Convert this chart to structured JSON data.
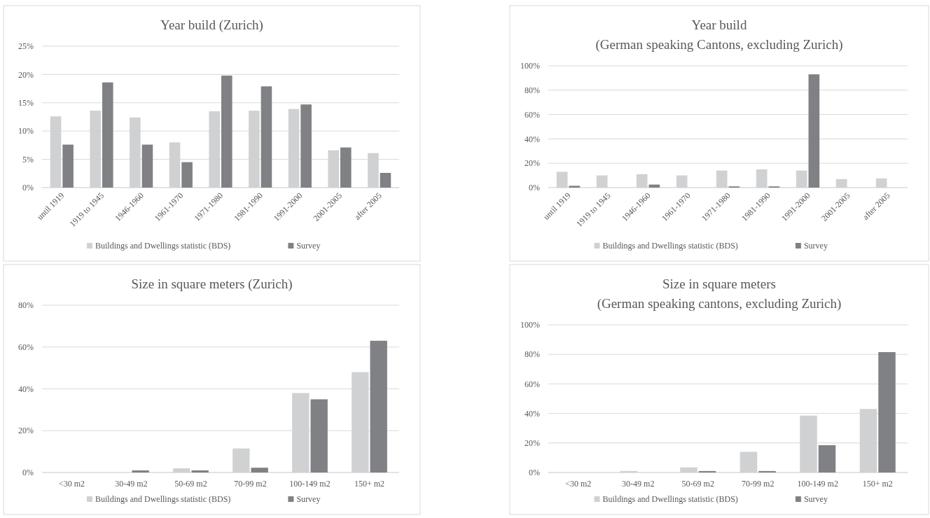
{
  "chart_data": [
    {
      "type": "bar",
      "title": "Year build (Zurich)",
      "categories": [
        "until 1919",
        "1919 to 1945",
        "1946-1960",
        "1961-1970",
        "1971-1980",
        "1981-1990",
        "1991-2000",
        "2001-2005",
        "after 2005"
      ],
      "series": [
        {
          "name": "Buildings and Dwellings statistic (BDS)",
          "color": "#d0d1d3",
          "values": [
            12.6,
            13.6,
            12.4,
            8.0,
            13.5,
            13.6,
            13.9,
            6.6,
            6.1
          ]
        },
        {
          "name": "Survey",
          "color": "#808185",
          "values": [
            7.6,
            18.6,
            7.6,
            4.5,
            19.8,
            17.9,
            14.7,
            7.1,
            2.6
          ]
        }
      ],
      "ylim": [
        0,
        25
      ],
      "yticks": [
        {
          "value": 0,
          "label": "0%"
        },
        {
          "value": 5,
          "label": "5%"
        },
        {
          "value": 10,
          "label": "10%"
        },
        {
          "value": 15,
          "label": "15%"
        },
        {
          "value": 20,
          "label": "20%"
        },
        {
          "value": 25,
          "label": "25%"
        }
      ],
      "grid": "y",
      "legend": "bottom"
    },
    {
      "type": "bar",
      "title": "Year build\n(German speaking Cantons, excluding Zurich)",
      "categories": [
        "until 1919",
        "1919 to 1945",
        "1946-1960",
        "1961-1970",
        "1971-1980",
        "1981-1990",
        "1991-2000",
        "2001-2005",
        "after 2005"
      ],
      "series": [
        {
          "name": "Buildings and Dwellings statistic (BDS)",
          "color": "#d0d1d3",
          "values": [
            13,
            10,
            11,
            10,
            14,
            15,
            14,
            7,
            7.5
          ]
        },
        {
          "name": "Survey",
          "color": "#808185",
          "values": [
            1.5,
            0,
            2.5,
            0,
            1,
            1,
            93,
            0,
            0
          ]
        }
      ],
      "ylim": [
        0,
        100
      ],
      "yticks": [
        {
          "value": 0,
          "label": "0%"
        },
        {
          "value": 20,
          "label": "20%"
        },
        {
          "value": 40,
          "label": "40%"
        },
        {
          "value": 60,
          "label": "60%"
        },
        {
          "value": 80,
          "label": "80%"
        },
        {
          "value": 100,
          "label": "100%"
        }
      ],
      "grid": "y",
      "legend": "bottom"
    },
    {
      "type": "bar",
      "title": "Size in square meters (Zurich)",
      "categories": [
        "<30 m2",
        "30-49 m2",
        "50-69 m2",
        "70-99 m2",
        "100-149 m2",
        "150+ m2"
      ],
      "series": [
        {
          "name": "Buildings and Dwellings statistic (BDS)",
          "color": "#d0d1d3",
          "values": [
            0,
            0,
            2,
            11.5,
            38,
            48
          ]
        },
        {
          "name": "Survey",
          "color": "#808185",
          "values": [
            0,
            1,
            1,
            2.3,
            35,
            63
          ]
        }
      ],
      "ylim": [
        0,
        80
      ],
      "yticks": [
        {
          "value": 0,
          "label": "0%"
        },
        {
          "value": 20,
          "label": "20%"
        },
        {
          "value": 40,
          "label": "40%"
        },
        {
          "value": 60,
          "label": "60%"
        },
        {
          "value": 80,
          "label": "80%"
        }
      ],
      "grid": "y",
      "legend": "bottom"
    },
    {
      "type": "bar",
      "title": "Size in square meters\n(German speaking cantons, excluding Zurich)",
      "categories": [
        "<30 m2",
        "30-49 m2",
        "50-69 m2",
        "70-99 m2",
        "100-149 m2",
        "150+ m2"
      ],
      "series": [
        {
          "name": "Buildings and Dwellings statistic (BDS)",
          "color": "#d0d1d3",
          "values": [
            0,
            1,
            3.5,
            14,
            38.5,
            43
          ]
        },
        {
          "name": "Survey",
          "color": "#808185",
          "values": [
            0,
            0,
            1,
            1,
            18.5,
            81.5
          ]
        }
      ],
      "ylim": [
        0,
        100
      ],
      "yticks": [
        {
          "value": 0,
          "label": "0%"
        },
        {
          "value": 20,
          "label": "20%"
        },
        {
          "value": 40,
          "label": "40%"
        },
        {
          "value": 60,
          "label": "60%"
        },
        {
          "value": 80,
          "label": "80%"
        },
        {
          "value": 100,
          "label": "100%"
        }
      ],
      "grid": "y",
      "legend": "bottom"
    }
  ]
}
